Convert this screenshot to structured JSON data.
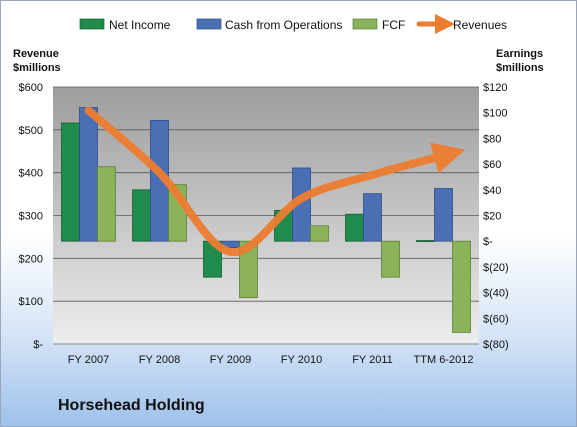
{
  "company": "Horsehead Holding",
  "chart_data": {
    "type": "bar",
    "categories": [
      "FY 2007",
      "FY 2008",
      "FY 2009",
      "FY 2010",
      "FY 2011",
      "TTM 6-2012"
    ],
    "left_axis": {
      "label_line1": "Revenue",
      "label_line2": "$millions",
      "ticks": [
        "$-",
        "$100",
        "$200",
        "$300",
        "$400",
        "$500",
        "$600"
      ],
      "range": [
        0,
        600
      ]
    },
    "right_axis": {
      "label_line1": "Earnings",
      "label_line2": "$millions",
      "ticks": [
        "$(80)",
        "$(60)",
        "$(40)",
        "$(20)",
        "$-",
        "$20",
        "$40",
        "$60",
        "$80",
        "$100",
        "$120"
      ],
      "range": [
        -80,
        120
      ]
    },
    "series": [
      {
        "name": "Net Income",
        "axis": "right",
        "kind": "bar",
        "color": "#1f8b4c",
        "values": [
          92,
          40,
          -28,
          24,
          21,
          0.5
        ]
      },
      {
        "name": "Cash from Operations",
        "axis": "right",
        "kind": "bar",
        "color": "#4a6fb5",
        "values": [
          104,
          94,
          -5,
          57,
          37,
          41
        ]
      },
      {
        "name": "FCF",
        "axis": "right",
        "kind": "bar",
        "color": "#8ab35a",
        "values": [
          58,
          44,
          -44,
          12,
          -28,
          -71
        ]
      },
      {
        "name": "Revenues",
        "axis": "left",
        "kind": "line",
        "color": "#ed7d31",
        "values": [
          545,
          400,
          215,
          340,
          395,
          440
        ]
      }
    ],
    "legend_position": "top",
    "grid": true
  }
}
